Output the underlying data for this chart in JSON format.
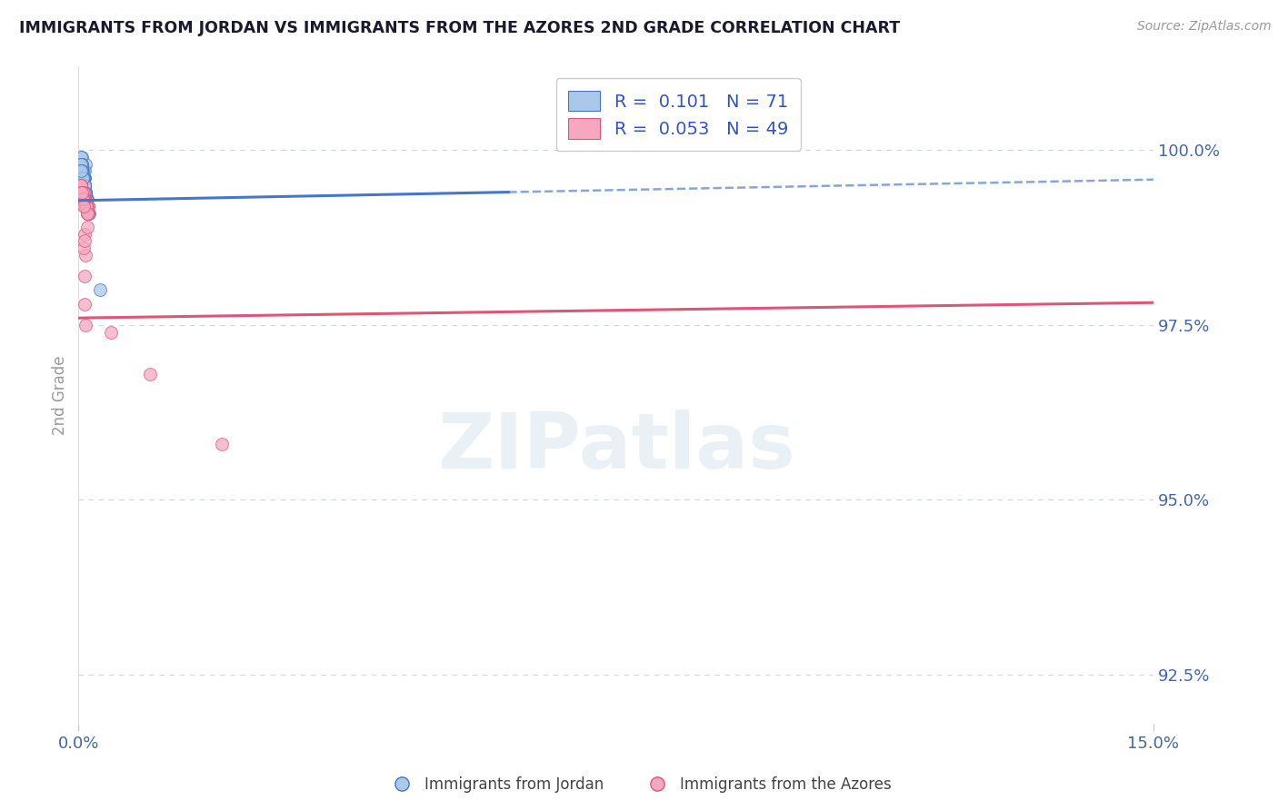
{
  "title": "IMMIGRANTS FROM JORDAN VS IMMIGRANTS FROM THE AZORES 2ND GRADE CORRELATION CHART",
  "source_text": "Source: ZipAtlas.com",
  "ylabel": "2nd Grade",
  "watermark": "ZIPatlas",
  "xlim": [
    0.0,
    15.0
  ],
  "ylim": [
    91.8,
    101.2
  ],
  "yticks": [
    92.5,
    95.0,
    97.5,
    100.0
  ],
  "xtick_labels": [
    "0.0%",
    "15.0%"
  ],
  "ytick_labels": [
    "92.5%",
    "95.0%",
    "97.5%",
    "100.0%"
  ],
  "jordan_color": "#aac8e8",
  "azores_color": "#f5a8c0",
  "jordan_R": 0.101,
  "jordan_N": 71,
  "azores_R": 0.053,
  "azores_N": 49,
  "jordan_scatter_x": [
    0.05,
    0.08,
    0.1,
    0.05,
    0.06,
    0.08,
    0.12,
    0.04,
    0.07,
    0.09,
    0.1,
    0.06,
    0.08,
    0.05,
    0.07,
    0.09,
    0.1,
    0.08,
    0.06,
    0.04,
    0.07,
    0.09,
    0.11,
    0.13,
    0.08,
    0.05,
    0.09,
    0.07,
    0.05,
    0.1,
    0.12,
    0.15,
    0.05,
    0.08,
    0.09,
    0.11,
    0.1,
    0.04,
    0.06,
    0.08,
    0.09,
    0.05,
    0.07,
    0.1,
    0.12,
    0.14,
    0.08,
    0.04,
    0.06,
    0.1,
    0.11,
    0.09,
    0.07,
    0.05,
    0.04,
    0.08,
    0.06,
    0.09,
    0.3,
    0.04,
    0.06,
    0.09,
    0.1,
    0.11,
    0.07,
    0.1,
    0.05,
    0.08,
    0.06,
    0.09,
    0.04
  ],
  "jordan_scatter_y": [
    99.9,
    99.6,
    99.8,
    99.7,
    99.5,
    99.4,
    99.3,
    99.9,
    99.7,
    99.6,
    99.4,
    99.5,
    99.7,
    99.8,
    99.6,
    99.4,
    99.3,
    99.5,
    99.7,
    99.8,
    99.6,
    99.4,
    99.3,
    99.2,
    99.5,
    99.7,
    99.4,
    99.6,
    99.8,
    99.3,
    99.2,
    99.1,
    99.6,
    99.5,
    99.4,
    99.3,
    99.2,
    99.7,
    99.6,
    99.5,
    99.4,
    99.7,
    99.6,
    99.3,
    99.2,
    99.1,
    99.5,
    99.7,
    99.6,
    99.4,
    99.3,
    99.4,
    99.6,
    99.7,
    99.8,
    99.5,
    99.6,
    99.4,
    98.0,
    99.7,
    99.6,
    99.5,
    99.4,
    99.3,
    99.6,
    99.4,
    99.7,
    99.5,
    99.6,
    99.4,
    99.7
  ],
  "azores_scatter_x": [
    0.06,
    0.1,
    0.07,
    0.12,
    0.03,
    0.08,
    0.05,
    0.14,
    0.09,
    0.06,
    0.11,
    0.04,
    0.07,
    0.1,
    0.13,
    0.06,
    0.08,
    0.03,
    0.06,
    0.09,
    0.12,
    0.07,
    0.05,
    0.1,
    0.14,
    0.04,
    0.08,
    0.11,
    0.06,
    0.09,
    0.07,
    0.12,
    0.07,
    0.45,
    0.08,
    0.1,
    0.04,
    0.06,
    0.09,
    0.12,
    1.0,
    0.07,
    0.09,
    2.0,
    0.06,
    0.08,
    0.1,
    0.05,
    0.07
  ],
  "azores_scatter_y": [
    99.4,
    99.2,
    99.3,
    99.1,
    99.5,
    99.3,
    99.4,
    99.2,
    99.3,
    99.4,
    99.2,
    99.5,
    99.3,
    99.2,
    99.1,
    99.4,
    99.3,
    99.5,
    99.4,
    99.2,
    99.1,
    99.3,
    99.4,
    99.2,
    99.1,
    99.5,
    99.3,
    99.2,
    99.4,
    99.3,
    99.4,
    99.1,
    99.3,
    97.4,
    98.8,
    98.5,
    99.4,
    99.3,
    98.2,
    98.9,
    96.8,
    98.6,
    97.8,
    95.8,
    99.3,
    98.7,
    97.5,
    99.4,
    99.2
  ],
  "bg_color": "#ffffff",
  "grid_color": "#c8d8e8",
  "title_color": "#1a1a2e",
  "axis_label_color": "#4466aa",
  "legend_R_color": "#3355bb",
  "trend_jordan_color": "#4477cc",
  "trend_azores_color": "#dd5577",
  "jordan_trend_x0": 0.0,
  "jordan_trend_y0": 99.28,
  "jordan_trend_x1": 15.0,
  "jordan_trend_y1": 99.58,
  "azores_trend_x0": 0.0,
  "azores_trend_y0": 97.6,
  "azores_trend_x1": 15.0,
  "azores_trend_y1": 97.82,
  "dash_y0": 99.55,
  "dash_y1": 100.35
}
